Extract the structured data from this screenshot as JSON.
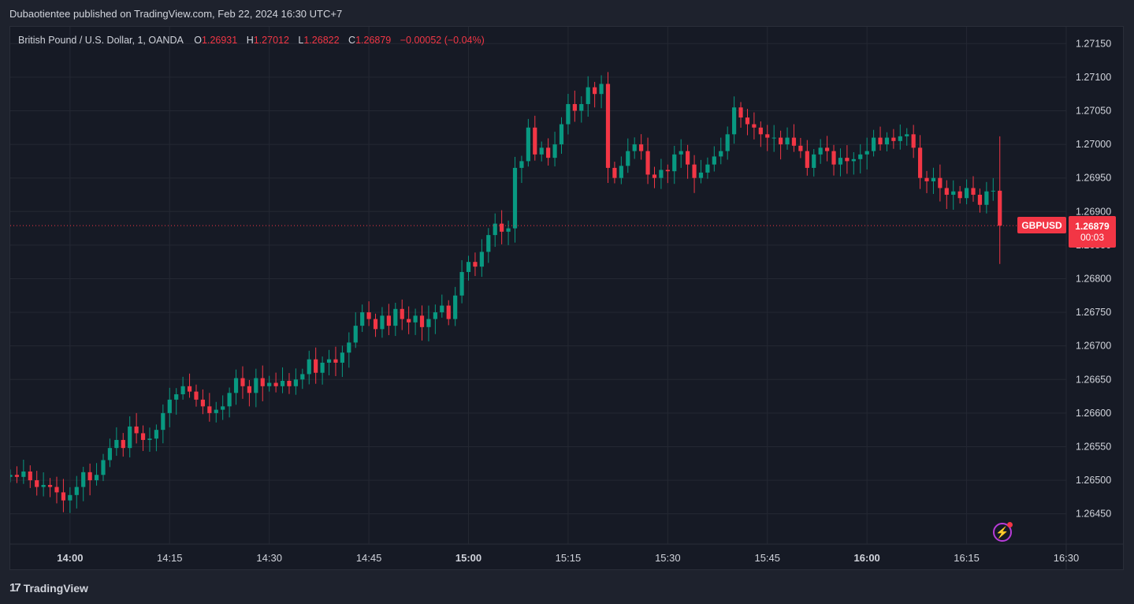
{
  "header": {
    "published": "Dubaotientee published on TradingView.com, Feb 22, 2024 16:30 UTC+7"
  },
  "legend": {
    "symbol": "British Pound / U.S. Dollar, 1, OANDA",
    "o_label": "O",
    "o": "1.26931",
    "h_label": "H",
    "h": "1.27012",
    "l_label": "L",
    "l": "1.26822",
    "c_label": "C",
    "c": "1.26879",
    "change": "−0.00052 (−0.04%)"
  },
  "price_tag": {
    "ticker": "GBPUSD",
    "price": "1.26879",
    "countdown": "00:03"
  },
  "branding": {
    "logo_mark": "17",
    "logo_text": "TradingView"
  },
  "colors": {
    "up": "#089981",
    "down": "#f23645",
    "background": "#161a25",
    "grid": "#242833"
  },
  "icons": {
    "alert": "lightning-bolt-icon"
  },
  "chart_data": {
    "type": "candlestick",
    "y_ticks": [
      "1.27150",
      "1.27100",
      "1.27050",
      "1.27000",
      "1.26950",
      "1.26900",
      "1.26850",
      "1.26800",
      "1.26750",
      "1.26700",
      "1.26650",
      "1.26600",
      "1.26550",
      "1.26500",
      "1.26450"
    ],
    "ylim": [
      1.26405,
      1.27175
    ],
    "x_ticks": [
      {
        "label": "14:00",
        "bold": true
      },
      {
        "label": "14:15",
        "bold": false
      },
      {
        "label": "14:30",
        "bold": false
      },
      {
        "label": "14:45",
        "bold": false
      },
      {
        "label": "15:00",
        "bold": true
      },
      {
        "label": "15:15",
        "bold": false
      },
      {
        "label": "15:30",
        "bold": false
      },
      {
        "label": "15:45",
        "bold": false
      },
      {
        "label": "16:00",
        "bold": true
      },
      {
        "label": "16:15",
        "bold": false
      },
      {
        "label": "16:30",
        "bold": false
      }
    ],
    "time_start_minute": -9,
    "time_end_minute": 150,
    "last_price": 1.26879,
    "closes": [
      1.26508,
      1.26505,
      1.26513,
      1.265,
      1.2649,
      1.26493,
      1.2649,
      1.26482,
      1.2647,
      1.26478,
      1.2649,
      1.26512,
      1.265,
      1.26508,
      1.2653,
      1.26548,
      1.2656,
      1.26548,
      1.2658,
      1.2657,
      1.2656,
      1.26562,
      1.26575,
      1.266,
      1.2662,
      1.26628,
      1.2664,
      1.26632,
      1.2662,
      1.2661,
      1.266,
      1.26605,
      1.2661,
      1.2663,
      1.26652,
      1.2664,
      1.2663,
      1.26652,
      1.2664,
      1.26645,
      1.2664,
      1.26648,
      1.2664,
      1.2665,
      1.26658,
      1.2668,
      1.2666,
      1.26675,
      1.2668,
      1.26675,
      1.2669,
      1.26705,
      1.2673,
      1.2675,
      1.2674,
      1.26725,
      1.26745,
      1.2673,
      1.26755,
      1.2674,
      1.26735,
      1.26745,
      1.26728,
      1.2674,
      1.2675,
      1.2676,
      1.2674,
      1.26775,
      1.2681,
      1.26825,
      1.26818,
      1.2684,
      1.26865,
      1.26882,
      1.2687,
      1.26875,
      1.26965,
      1.26975,
      1.27025,
      1.26985,
      1.26995,
      1.2698,
      1.27,
      1.2703,
      1.2706,
      1.2705,
      1.2706,
      1.27085,
      1.27075,
      1.2709,
      1.26965,
      1.2695,
      1.26968,
      1.2699,
      1.27,
      1.2699,
      1.26955,
      1.2695,
      1.26962,
      1.2696,
      1.26985,
      1.2699,
      1.2697,
      1.2695,
      1.26958,
      1.2697,
      1.26982,
      1.2699,
      1.27015,
      1.27055,
      1.2704,
      1.2703,
      1.27025,
      1.27015,
      1.2701,
      1.2701,
      1.27,
      1.2701,
      1.26998,
      1.2699,
      1.26965,
      1.26985,
      1.26995,
      1.2699,
      1.2697,
      1.2698,
      1.26975,
      1.26978,
      1.26985,
      1.2699,
      1.2701,
      1.27,
      1.2701,
      1.27005,
      1.27012,
      1.27015,
      1.26995,
      1.2695,
      1.26945,
      1.2695,
      1.26935,
      1.26925,
      1.2693,
      1.2692,
      1.26935,
      1.26925,
      1.2691,
      1.2693,
      1.26931,
      1.26879
    ]
  }
}
